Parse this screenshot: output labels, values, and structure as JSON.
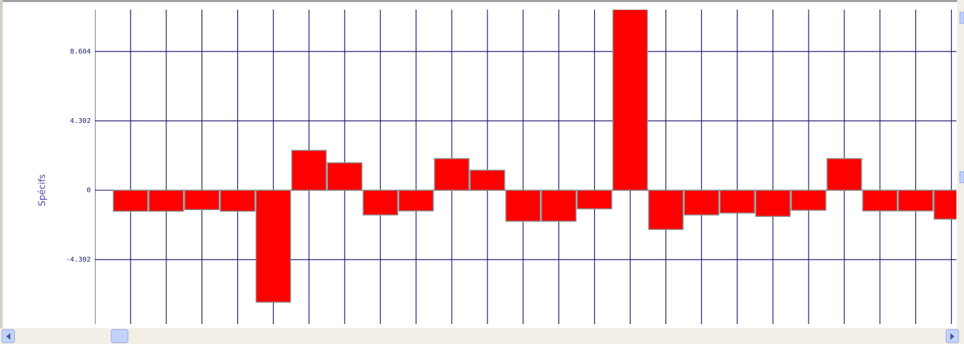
{
  "chart_data": {
    "type": "bar",
    "y_label": "Spécifs",
    "categories": [
      null,
      null,
      null,
      null,
      null,
      null,
      null,
      null,
      null,
      null,
      null,
      null,
      null,
      null,
      null,
      null,
      null,
      null,
      null,
      null,
      null,
      null,
      null,
      null
    ],
    "values": [
      -1.3,
      -1.3,
      -1.2,
      -1.3,
      -6.94,
      2.47,
      1.7,
      -1.53,
      -1.28,
      1.96,
      1.24,
      -1.92,
      -1.92,
      -1.15,
      11.2,
      -2.43,
      -1.53,
      -1.41,
      -1.62,
      -1.24,
      1.96,
      -1.28,
      -1.28,
      -1.79
    ],
    "color": "#ff0000",
    "ylim": [
      -8.3,
      11.2
    ],
    "yticks": [
      -4.302,
      0,
      4.302,
      8.604
    ],
    "grid": true
  }
}
